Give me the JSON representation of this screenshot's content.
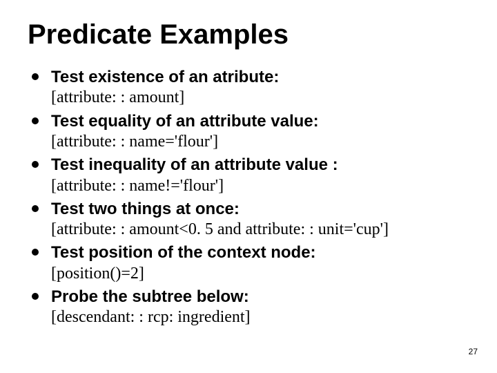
{
  "title": "Predicate Examples",
  "items": [
    {
      "heading": "Test existence of an atribute:",
      "code": "[attribute: : amount]"
    },
    {
      "heading": "Test equality of an attribute value:",
      "code": "[attribute: : name='flour']"
    },
    {
      "heading": "Test inequality of an attribute value :",
      "code": "[attribute: : name!='flour']"
    },
    {
      "heading": "Test two things at once:",
      "code": "[attribute: : amount<0. 5 and attribute: : unit='cup']"
    },
    {
      "heading": "Test position of the context node:",
      "code": "[position()=2]"
    },
    {
      "heading": "Probe the subtree below:",
      "code": "[descendant: : rcp: ingredient]"
    }
  ],
  "page_number": "27",
  "colors": {
    "background": "#ffffff",
    "text": "#000000",
    "bullet": "#000000"
  }
}
